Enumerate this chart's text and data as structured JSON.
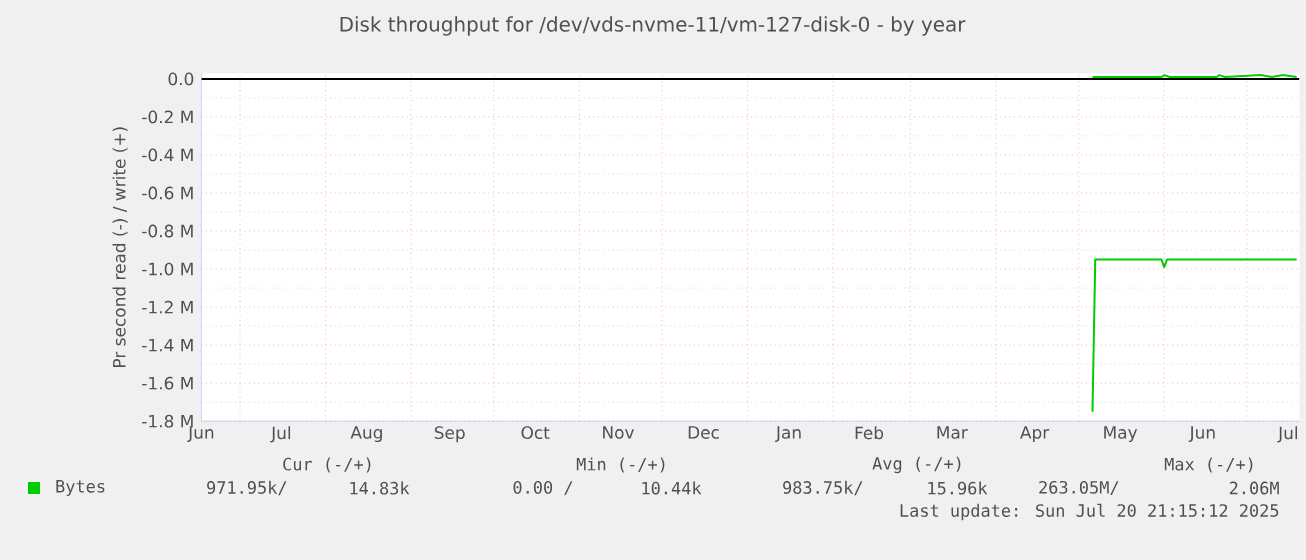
{
  "chart_data": {
    "type": "line",
    "title": "Disk throughput for /dev/vds-nvme-11/vm-127-disk-0 - by year",
    "ylabel": "Pr second read (-) / write (+)",
    "xlim": [
      "2024-06-17",
      "2025-07-20"
    ],
    "ylim": [
      -1800000,
      30000
    ],
    "xticks": [
      {
        "value": "2024-06-17",
        "label": "Jun"
      },
      {
        "value": "2024-07-16",
        "label": "Jul"
      },
      {
        "value": "2024-08-16",
        "label": "Aug"
      },
      {
        "value": "2024-09-15",
        "label": "Sep"
      },
      {
        "value": "2024-10-16",
        "label": "Oct"
      },
      {
        "value": "2024-11-15",
        "label": "Nov"
      },
      {
        "value": "2024-12-16",
        "label": "Dec"
      },
      {
        "value": "2025-01-16",
        "label": "Jan"
      },
      {
        "value": "2025-02-14",
        "label": "Feb"
      },
      {
        "value": "2025-03-16",
        "label": "Mar"
      },
      {
        "value": "2025-04-15",
        "label": "Apr"
      },
      {
        "value": "2025-05-16",
        "label": "May"
      },
      {
        "value": "2025-06-15",
        "label": "Jun"
      },
      {
        "value": "2025-07-16",
        "label": "Jul"
      },
      {
        "value": "2024-07-01",
        "label": null
      },
      {
        "value": "2024-08-01",
        "label": null
      },
      {
        "value": "2024-09-01",
        "label": null
      },
      {
        "value": "2024-10-01",
        "label": null
      },
      {
        "value": "2024-11-01",
        "label": null
      },
      {
        "value": "2024-12-01",
        "label": null
      },
      {
        "value": "2025-01-01",
        "label": null
      },
      {
        "value": "2025-02-01",
        "label": null
      },
      {
        "value": "2025-03-01",
        "label": null
      },
      {
        "value": "2025-04-01",
        "label": null
      },
      {
        "value": "2025-05-01",
        "label": null
      },
      {
        "value": "2025-06-01",
        "label": null
      },
      {
        "value": "2025-07-01",
        "label": null
      }
    ],
    "yticks": [
      {
        "value": -1800000,
        "label": "-1.8 M"
      },
      {
        "value": -1600000,
        "label": "-1.6 M"
      },
      {
        "value": -1400000,
        "label": "-1.4 M"
      },
      {
        "value": -1200000,
        "label": "-1.2 M"
      },
      {
        "value": -1000000,
        "label": "-1.0 M"
      },
      {
        "value": -800000,
        "label": "-0.8 M"
      },
      {
        "value": -600000,
        "label": "-0.6 M"
      },
      {
        "value": -400000,
        "label": "-0.4 M"
      },
      {
        "value": -200000,
        "label": "-0.2 M"
      },
      {
        "value": 0,
        "label": "0.0"
      },
      {
        "value": -1700000,
        "label": null
      },
      {
        "value": -1500000,
        "label": null
      },
      {
        "value": -1300000,
        "label": null
      },
      {
        "value": -1100000,
        "label": null
      },
      {
        "value": -900000,
        "label": null
      },
      {
        "value": -700000,
        "label": null
      },
      {
        "value": -500000,
        "label": null
      },
      {
        "value": -300000,
        "label": null
      },
      {
        "value": -100000,
        "label": null
      }
    ],
    "grid": true,
    "legend": "bottom",
    "ref_lines": [
      {
        "axis": "y",
        "value": 0,
        "color": "#000000"
      }
    ],
    "series": [
      {
        "name": "Bytes",
        "color": "#00cc00",
        "x": [
          "2025-05-06",
          "2025-05-07",
          "2025-05-31",
          "2025-06-01",
          "2025-06-02",
          "2025-07-19"
        ],
        "values": [
          -1750000,
          -950000,
          -950000,
          -990000,
          -950000,
          -950000
        ]
      },
      {
        "color": "#00cc00",
        "x": [
          "2025-05-06",
          "2025-05-10",
          "2025-05-12",
          "2025-05-31",
          "2025-06-01",
          "2025-06-03",
          "2025-06-20",
          "2025-06-21",
          "2025-06-23",
          "2025-07-06",
          "2025-07-10",
          "2025-07-14",
          "2025-07-19"
        ],
        "values": [
          10000,
          10000,
          10000,
          10000,
          20000,
          10000,
          10000,
          20000,
          10000,
          20000,
          10000,
          20000,
          10000
        ]
      }
    ],
    "annotations": [
      "Cur (-/+)",
      "Min (-/+)",
      "Avg (-/+)",
      "Max (-/+)",
      "971.95k/",
      "14.83k",
      "0.00 /",
      "10.44k",
      "983.75k/",
      "15.96k",
      "263.05M/",
      "2.06M",
      "Last update: Sun Jul 20 21:15:12 2025"
    ]
  }
}
